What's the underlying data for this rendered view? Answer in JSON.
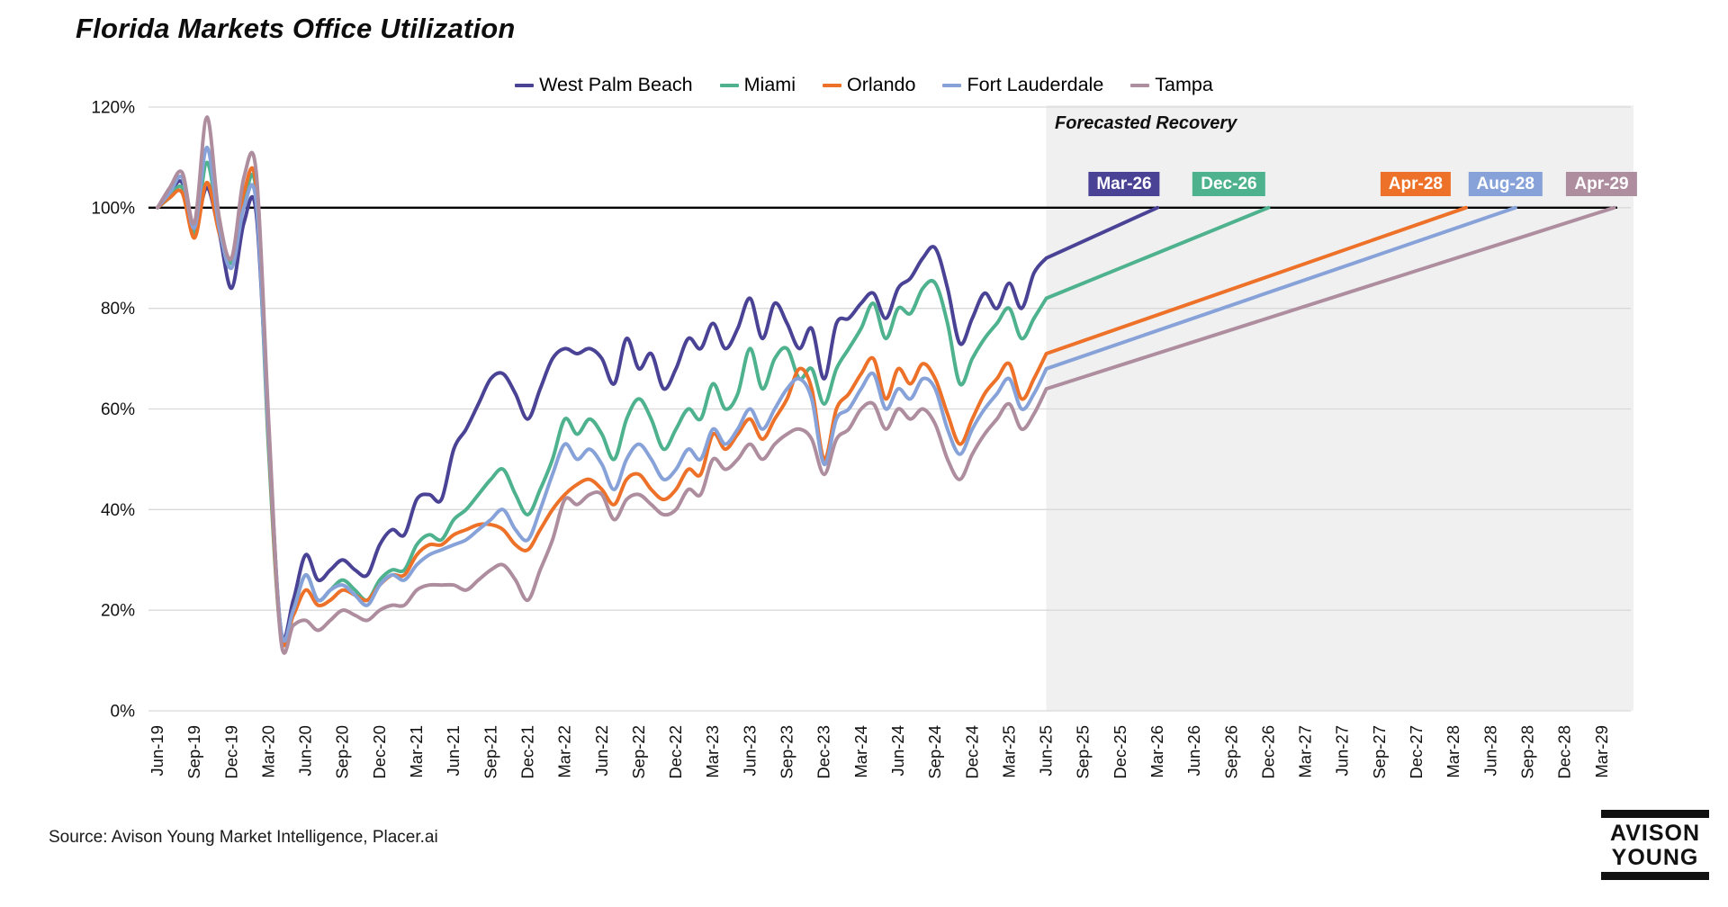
{
  "header": {
    "title": "Florida Markets Office Utilization"
  },
  "annotations": {
    "forecast_region_label": "Forecasted Recovery"
  },
  "footer": {
    "source": "Source: Avison Young Market Intelligence, Placer.ai",
    "logo_lines": [
      "AVISON",
      "YOUNG"
    ]
  },
  "chart_data": {
    "type": "line",
    "title": "Florida Markets Office Utilization",
    "xlabel": "",
    "ylabel": "",
    "ylim": [
      0,
      120
    ],
    "grid": "horizontal",
    "legend_position": "top-center",
    "baseline_value": 100,
    "y_ticks": [
      "0%",
      "20%",
      "40%",
      "60%",
      "80%",
      "100%",
      "120%"
    ],
    "x_tick_labels": [
      "Jun-19",
      "Sep-19",
      "Dec-19",
      "Mar-20",
      "Jun-20",
      "Sep-20",
      "Dec-20",
      "Mar-21",
      "Jun-21",
      "Sep-21",
      "Dec-21",
      "Mar-22",
      "Jun-22",
      "Sep-22",
      "Dec-22",
      "Mar-23",
      "Jun-23",
      "Sep-23",
      "Dec-23",
      "Mar-24",
      "Jun-24",
      "Sep-24",
      "Dec-24",
      "Mar-25",
      "Jun-25",
      "Sep-25",
      "Dec-25",
      "Mar-26",
      "Jun-26",
      "Sep-26",
      "Dec-26",
      "Mar-27",
      "Jun-27",
      "Sep-27",
      "Dec-27",
      "Mar-28",
      "Jun-28",
      "Sep-28",
      "Dec-28",
      "Mar-29"
    ],
    "monthly_values_start": "Jun-19",
    "monthly_values_end": "Jun-25",
    "forecast": {
      "region_start": "Jun-25",
      "region_label": "Forecasted Recovery",
      "target_value": 100,
      "note": "straight-line forecast from Jun-25 actual to 100% at each market's labeled date"
    },
    "series": [
      {
        "name": "West Palm Beach",
        "color": "#4a4395",
        "forecast_label": "Mar-26",
        "forecast_end_months_after_start": 81,
        "monthly_values": [
          100,
          103,
          105,
          96,
          104,
          95,
          84,
          97,
          99,
          55,
          16,
          22,
          31,
          26,
          28,
          30,
          28,
          27,
          33,
          36,
          35,
          42,
          43,
          42,
          52,
          56,
          61,
          66,
          67,
          63,
          58,
          64,
          70,
          72,
          71,
          72,
          70,
          65,
          74,
          68,
          71,
          64,
          68,
          74,
          72,
          77,
          72,
          76,
          82,
          74,
          81,
          77,
          72,
          76,
          66,
          77,
          78,
          81,
          83,
          78,
          84,
          86,
          90,
          92,
          84,
          73,
          78,
          83,
          80,
          85,
          80,
          87,
          90
        ]
      },
      {
        "name": "Miami",
        "color": "#4eb28f",
        "forecast_label": "Dec-26",
        "forecast_end_months_after_start": 90,
        "monthly_values": [
          100,
          102,
          104,
          95,
          109,
          96,
          89,
          101,
          103,
          52,
          15,
          20,
          27,
          22,
          24,
          26,
          24,
          22,
          26,
          28,
          28,
          33,
          35,
          34,
          38,
          40,
          43,
          46,
          48,
          43,
          39,
          44,
          50,
          58,
          55,
          58,
          55,
          50,
          58,
          62,
          58,
          52,
          56,
          60,
          58,
          65,
          60,
          63,
          72,
          64,
          70,
          72,
          66,
          68,
          61,
          68,
          72,
          76,
          81,
          74,
          80,
          79,
          84,
          85,
          77,
          65,
          70,
          74,
          77,
          80,
          74,
          78,
          82
        ]
      },
      {
        "name": "Orlando",
        "color": "#ed7128",
        "forecast_label": "Apr-28",
        "forecast_end_months_after_start": 106,
        "monthly_values": [
          100,
          102,
          103,
          94,
          105,
          95,
          90,
          103,
          104,
          54,
          15,
          19,
          24,
          21,
          22,
          24,
          23,
          22,
          25,
          27,
          27,
          31,
          33,
          33,
          35,
          36,
          37,
          37,
          36,
          33,
          32,
          36,
          40,
          43,
          45,
          46,
          44,
          41,
          46,
          47,
          44,
          42,
          44,
          48,
          47,
          55,
          52,
          55,
          58,
          54,
          58,
          62,
          68,
          64,
          50,
          60,
          63,
          67,
          70,
          62,
          68,
          65,
          69,
          66,
          59,
          53,
          58,
          63,
          66,
          69,
          62,
          66,
          71
        ]
      },
      {
        "name": "Fort Lauderdale",
        "color": "#87a2d8",
        "forecast_label": "Aug-28",
        "forecast_end_months_after_start": 110,
        "monthly_values": [
          100,
          103,
          106,
          96,
          112,
          96,
          88,
          100,
          101,
          55,
          16,
          20,
          27,
          22,
          24,
          25,
          23,
          21,
          25,
          27,
          26,
          29,
          31,
          32,
          33,
          34,
          36,
          38,
          40,
          36,
          34,
          40,
          47,
          53,
          50,
          52,
          49,
          44,
          50,
          53,
          50,
          46,
          48,
          52,
          50,
          56,
          53,
          56,
          60,
          56,
          60,
          64,
          66,
          62,
          49,
          58,
          60,
          64,
          67,
          60,
          64,
          62,
          66,
          64,
          56,
          51,
          56,
          60,
          63,
          66,
          60,
          63,
          68
        ]
      },
      {
        "name": "Tampa",
        "color": "#ad8d9e",
        "forecast_label": "Apr-29",
        "forecast_end_months_after_start": 118,
        "monthly_values": [
          100,
          104,
          107,
          97,
          118,
          98,
          90,
          106,
          107,
          58,
          14,
          17,
          18,
          16,
          18,
          20,
          19,
          18,
          20,
          21,
          21,
          24,
          25,
          25,
          25,
          24,
          26,
          28,
          29,
          26,
          22,
          28,
          34,
          42,
          41,
          43,
          43,
          38,
          42,
          43,
          41,
          39,
          40,
          44,
          43,
          50,
          48,
          50,
          53,
          50,
          53,
          55,
          56,
          54,
          47,
          54,
          56,
          60,
          61,
          56,
          60,
          58,
          60,
          57,
          50,
          46,
          51,
          55,
          58,
          61,
          56,
          59,
          64
        ]
      }
    ],
    "style_colors": {
      "baseline_line": "#000000",
      "gridline": "#d9d9d9",
      "forecast_region_bg": "#f0f0f1"
    }
  }
}
